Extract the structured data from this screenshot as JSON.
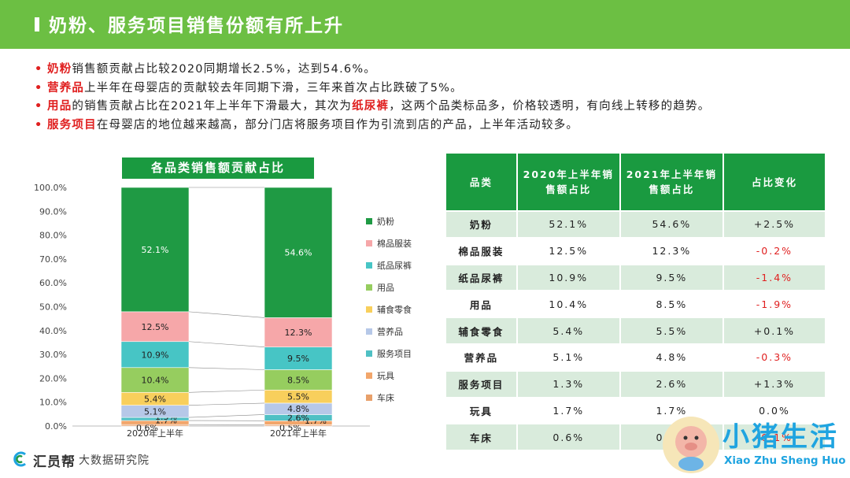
{
  "title": "奶粉、服务项目销售份额有所上升",
  "bullets": [
    {
      "hl": "奶粉",
      "rest1": "销售额贡献占比较2020同期增长2.5%，达到54.6%。",
      "hl2": "",
      "rest2": ""
    },
    {
      "hl": "营养品",
      "rest1": "上半年在母婴店的贡献较去年同期下滑，三年来首次占比跌破了5%。",
      "hl2": "",
      "rest2": ""
    },
    {
      "hl": "用品",
      "rest1": "的销售贡献占比在2021年上半年下滑最大，其次为",
      "hl2": "纸尿裤",
      "rest2": "，这两个品类标品多，价格较透明，有向线上转移的趋势。"
    },
    {
      "hl": "服务项目",
      "rest1": "在母婴店的地位越来越高，部分门店将服务项目作为引流到店的产品，上半年活动较多。",
      "hl2": "",
      "rest2": ""
    }
  ],
  "chart_data": {
    "type": "bar",
    "stacked": true,
    "title": "各品类销售额贡献占比",
    "categories": [
      "2020年上半年",
      "2021年上半年"
    ],
    "y_ticks": [
      "0.0%",
      "10.0%",
      "20.0%",
      "30.0%",
      "40.0%",
      "50.0%",
      "60.0%",
      "70.0%",
      "80.0%",
      "90.0%",
      "100.0%"
    ],
    "ylim": [
      0,
      100
    ],
    "legend_position": "right",
    "series": [
      {
        "name": "车床",
        "values": [
          0.6,
          0.5
        ],
        "labels": [
          "0.6%",
          "0.5%"
        ],
        "color": "#e8a06a"
      },
      {
        "name": "玩具",
        "values": [
          1.7,
          1.7
        ],
        "labels": [
          "1.7%",
          "1.7%"
        ],
        "color": "#f2a66b"
      },
      {
        "name": "服务项目",
        "values": [
          1.3,
          2.6
        ],
        "labels": [
          "1.3%",
          "2.6%"
        ],
        "color": "#4fc0c4"
      },
      {
        "name": "营养品",
        "values": [
          5.1,
          4.8
        ],
        "labels": [
          "5.1%",
          "4.8%"
        ],
        "color": "#b6c8e8"
      },
      {
        "name": "辅食零食",
        "values": [
          5.4,
          5.5
        ],
        "labels": [
          "5.4%",
          "5.5%"
        ],
        "color": "#f8cf5c"
      },
      {
        "name": "用品",
        "values": [
          10.4,
          8.5
        ],
        "labels": [
          "10.4%",
          "8.5%"
        ],
        "color": "#96cd5f"
      },
      {
        "name": "纸品尿裤",
        "values": [
          10.9,
          9.5
        ],
        "labels": [
          "10.9%",
          "9.5%"
        ],
        "color": "#47c5c5"
      },
      {
        "name": "棉品服装",
        "values": [
          12.5,
          12.3
        ],
        "labels": [
          "12.5%",
          "12.3%"
        ],
        "color": "#f6a7a9"
      },
      {
        "name": "奶粉",
        "values": [
          52.1,
          54.6
        ],
        "labels": [
          "52.1%",
          "54.6%"
        ],
        "color": "#1f9a44"
      }
    ],
    "legend_order": [
      "奶粉",
      "棉品服装",
      "纸品尿裤",
      "用品",
      "辅食零食",
      "营养品",
      "服务项目",
      "玩具",
      "车床"
    ]
  },
  "table": {
    "headers": [
      "品类",
      "2020年上半年销售额占比",
      "2021年上半年销售额占比",
      "占比变化"
    ],
    "rows": [
      {
        "cat": "奶粉",
        "v2020": "52.1%",
        "v2021": "54.6%",
        "change": "+2.5%",
        "neg": false
      },
      {
        "cat": "棉品服装",
        "v2020": "12.5%",
        "v2021": "12.3%",
        "change": "-0.2%",
        "neg": true
      },
      {
        "cat": "纸品尿裤",
        "v2020": "10.9%",
        "v2021": "9.5%",
        "change": "-1.4%",
        "neg": true
      },
      {
        "cat": "用品",
        "v2020": "10.4%",
        "v2021": "8.5%",
        "change": "-1.9%",
        "neg": true
      },
      {
        "cat": "辅食零食",
        "v2020": "5.4%",
        "v2021": "5.5%",
        "change": "+0.1%",
        "neg": false
      },
      {
        "cat": "营养品",
        "v2020": "5.1%",
        "v2021": "4.8%",
        "change": "-0.3%",
        "neg": true
      },
      {
        "cat": "服务项目",
        "v2020": "1.3%",
        "v2021": "2.6%",
        "change": "+1.3%",
        "neg": false
      },
      {
        "cat": "玩具",
        "v2020": "1.7%",
        "v2021": "1.7%",
        "change": "0.0%",
        "neg": false
      },
      {
        "cat": "车床",
        "v2020": "0.6%",
        "v2021": "0.5%",
        "change": "-0.1%",
        "neg": true
      }
    ]
  },
  "footer": {
    "brand": "汇员帮",
    "sub": "大数据研究院"
  },
  "watermark": {
    "title": "小猪生活",
    "sub": "Xiao Zhu Sheng Huo"
  },
  "colors": {
    "header_green": "#6cbf43",
    "dark_green": "#1a9a40",
    "highlight_red": "#e02020",
    "watermark_blue": "#1fa4e0"
  }
}
